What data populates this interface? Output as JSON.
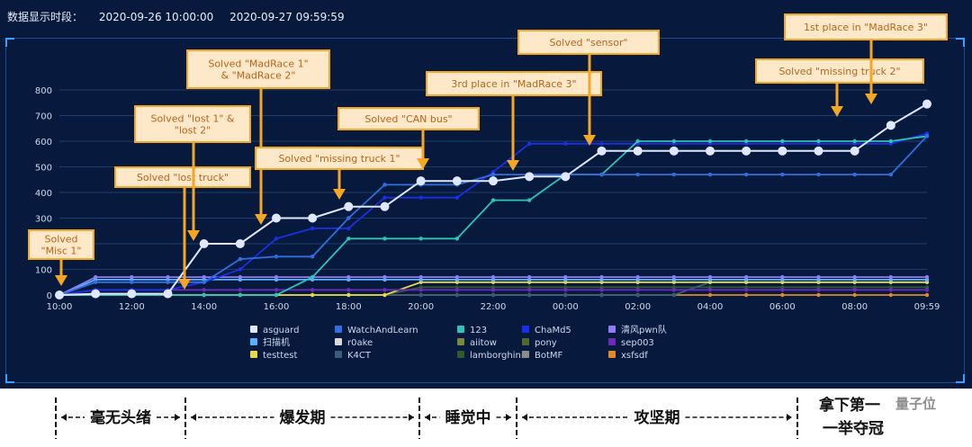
{
  "header": {
    "label": "数据显示时段：",
    "start": "2020-09-26 10:00:00",
    "end": "2020-09-27 09:59:59"
  },
  "colors": {
    "background": "#071a3d",
    "callout_fill": "#fde9c9",
    "callout_border": "#f5a623",
    "arrow": "#f5a623"
  },
  "chart_data": {
    "type": "line",
    "x_ticks": [
      "10:00",
      "12:00",
      "14:00",
      "16:00",
      "18:00",
      "20:00",
      "22:00",
      "00:00",
      "02:00",
      "04:00",
      "06:00",
      "08:00",
      "09:59"
    ],
    "ylim": [
      0,
      800
    ],
    "y_ticks": [
      0,
      100,
      200,
      300,
      400,
      500,
      600,
      700,
      800
    ],
    "grid": true,
    "legend_position": "bottom",
    "series": [
      {
        "name": "asguard",
        "color": "#dfe8ff",
        "marker": "large",
        "points": [
          [
            0,
            0
          ],
          [
            1,
            5
          ],
          [
            2,
            5
          ],
          [
            3,
            5
          ],
          [
            4,
            200
          ],
          [
            5,
            200
          ],
          [
            6,
            300
          ],
          [
            7,
            300
          ],
          [
            8,
            345
          ],
          [
            9,
            345
          ],
          [
            10,
            445
          ],
          [
            11,
            445
          ],
          [
            12,
            445
          ],
          [
            13,
            462
          ],
          [
            14,
            462
          ],
          [
            15,
            562
          ],
          [
            16,
            562
          ],
          [
            17,
            562
          ],
          [
            18,
            562
          ],
          [
            19,
            562
          ],
          [
            20,
            562
          ],
          [
            21,
            562
          ],
          [
            22,
            562
          ],
          [
            23,
            662
          ],
          [
            24,
            745
          ]
        ]
      },
      {
        "name": "WatchAndLearn",
        "color": "#2f6fe0",
        "marker": "small",
        "points": [
          [
            0,
            0
          ],
          [
            1,
            50
          ],
          [
            2,
            50
          ],
          [
            3,
            50
          ],
          [
            4,
            50
          ],
          [
            5,
            140
          ],
          [
            6,
            150
          ],
          [
            7,
            150
          ],
          [
            8,
            300
          ],
          [
            9,
            430
          ],
          [
            10,
            430
          ],
          [
            11,
            430
          ],
          [
            12,
            470
          ],
          [
            13,
            470
          ],
          [
            14,
            470
          ],
          [
            15,
            470
          ],
          [
            16,
            470
          ],
          [
            17,
            470
          ],
          [
            18,
            470
          ],
          [
            19,
            470
          ],
          [
            20,
            470
          ],
          [
            21,
            470
          ],
          [
            22,
            470
          ],
          [
            23,
            470
          ],
          [
            24,
            620
          ]
        ]
      },
      {
        "name": "123",
        "color": "#2ec4b6",
        "marker": "small",
        "points": [
          [
            0,
            0
          ],
          [
            1,
            0
          ],
          [
            2,
            0
          ],
          [
            3,
            0
          ],
          [
            4,
            0
          ],
          [
            5,
            0
          ],
          [
            6,
            0
          ],
          [
            7,
            70
          ],
          [
            8,
            220
          ],
          [
            9,
            220
          ],
          [
            10,
            220
          ],
          [
            11,
            220
          ],
          [
            12,
            370
          ],
          [
            13,
            370
          ],
          [
            14,
            470
          ],
          [
            15,
            470
          ],
          [
            16,
            600
          ],
          [
            17,
            600
          ],
          [
            18,
            600
          ],
          [
            19,
            600
          ],
          [
            20,
            600
          ],
          [
            21,
            600
          ],
          [
            22,
            600
          ],
          [
            23,
            600
          ],
          [
            24,
            620
          ]
        ]
      },
      {
        "name": "ChaMd5",
        "color": "#1a2fe8",
        "marker": "small",
        "points": [
          [
            0,
            0
          ],
          [
            1,
            20
          ],
          [
            2,
            20
          ],
          [
            3,
            20
          ],
          [
            4,
            50
          ],
          [
            5,
            100
          ],
          [
            6,
            220
          ],
          [
            7,
            260
          ],
          [
            8,
            260
          ],
          [
            9,
            380
          ],
          [
            10,
            380
          ],
          [
            11,
            380
          ],
          [
            12,
            480
          ],
          [
            13,
            590
          ],
          [
            14,
            590
          ],
          [
            15,
            590
          ],
          [
            16,
            590
          ],
          [
            17,
            590
          ],
          [
            18,
            590
          ],
          [
            19,
            590
          ],
          [
            20,
            590
          ],
          [
            21,
            590
          ],
          [
            22,
            590
          ],
          [
            23,
            590
          ],
          [
            24,
            630
          ]
        ]
      },
      {
        "name": "清风pwn队",
        "color": "#8f7cf2",
        "marker": "small",
        "points": [
          [
            0,
            0
          ],
          [
            1,
            70
          ],
          [
            2,
            70
          ],
          [
            3,
            70
          ],
          [
            4,
            70
          ],
          [
            5,
            70
          ],
          [
            6,
            70
          ],
          [
            7,
            70
          ],
          [
            8,
            70
          ],
          [
            9,
            70
          ],
          [
            10,
            70
          ],
          [
            11,
            70
          ],
          [
            12,
            70
          ],
          [
            13,
            70
          ],
          [
            14,
            70
          ],
          [
            15,
            70
          ],
          [
            16,
            70
          ],
          [
            17,
            70
          ],
          [
            18,
            70
          ],
          [
            19,
            70
          ],
          [
            20,
            70
          ],
          [
            21,
            70
          ],
          [
            22,
            70
          ],
          [
            23,
            70
          ],
          [
            24,
            70
          ]
        ]
      },
      {
        "name": "扫描机",
        "color": "#5ab0ff",
        "marker": "small",
        "points": [
          [
            0,
            0
          ],
          [
            1,
            60
          ],
          [
            2,
            60
          ],
          [
            3,
            60
          ],
          [
            4,
            60
          ],
          [
            5,
            60
          ],
          [
            6,
            60
          ],
          [
            7,
            60
          ],
          [
            8,
            60
          ],
          [
            9,
            60
          ],
          [
            10,
            60
          ],
          [
            11,
            60
          ],
          [
            12,
            60
          ],
          [
            13,
            60
          ],
          [
            14,
            60
          ],
          [
            15,
            60
          ],
          [
            16,
            60
          ],
          [
            17,
            60
          ],
          [
            18,
            60
          ],
          [
            19,
            60
          ],
          [
            20,
            60
          ],
          [
            21,
            60
          ],
          [
            22,
            60
          ],
          [
            23,
            60
          ],
          [
            24,
            60
          ]
        ]
      },
      {
        "name": "r0ake",
        "color": "#d9d9d9",
        "marker": "none",
        "points": []
      },
      {
        "name": "aiitow",
        "color": "#7a8a3a",
        "marker": "none",
        "points": []
      },
      {
        "name": "pony",
        "color": "#4e6a2e",
        "marker": "none",
        "points": []
      },
      {
        "name": "sep003",
        "color": "#6a2bb8",
        "marker": "small",
        "points": [
          [
            0,
            0
          ],
          [
            1,
            20
          ],
          [
            2,
            20
          ],
          [
            3,
            20
          ],
          [
            4,
            20
          ],
          [
            5,
            20
          ],
          [
            6,
            20
          ],
          [
            7,
            20
          ],
          [
            8,
            20
          ],
          [
            9,
            20
          ],
          [
            10,
            20
          ],
          [
            11,
            20
          ],
          [
            12,
            20
          ],
          [
            13,
            20
          ],
          [
            14,
            20
          ],
          [
            15,
            20
          ],
          [
            16,
            20
          ],
          [
            17,
            20
          ],
          [
            18,
            20
          ],
          [
            19,
            20
          ],
          [
            20,
            20
          ],
          [
            21,
            20
          ],
          [
            22,
            20
          ],
          [
            23,
            20
          ],
          [
            24,
            20
          ]
        ]
      },
      {
        "name": "testtest",
        "color": "#e6d84a",
        "marker": "small",
        "points": [
          [
            0,
            0
          ],
          [
            1,
            0
          ],
          [
            2,
            0
          ],
          [
            3,
            0
          ],
          [
            4,
            0
          ],
          [
            5,
            0
          ],
          [
            6,
            0
          ],
          [
            7,
            0
          ],
          [
            8,
            0
          ],
          [
            9,
            0
          ],
          [
            10,
            50
          ],
          [
            11,
            50
          ],
          [
            12,
            50
          ],
          [
            13,
            50
          ],
          [
            14,
            50
          ],
          [
            15,
            50
          ],
          [
            16,
            50
          ],
          [
            17,
            50
          ],
          [
            18,
            50
          ],
          [
            19,
            50
          ],
          [
            20,
            50
          ],
          [
            21,
            50
          ],
          [
            22,
            50
          ],
          [
            23,
            50
          ],
          [
            24,
            50
          ]
        ]
      },
      {
        "name": "K4CT",
        "color": "#3a5a7a",
        "marker": "small",
        "points": [
          [
            0,
            0
          ],
          [
            1,
            0
          ],
          [
            2,
            0
          ],
          [
            3,
            0
          ],
          [
            4,
            0
          ],
          [
            5,
            0
          ],
          [
            6,
            0
          ],
          [
            7,
            0
          ],
          [
            8,
            0
          ],
          [
            9,
            0
          ],
          [
            10,
            0
          ],
          [
            11,
            0
          ],
          [
            12,
            0
          ],
          [
            13,
            0
          ],
          [
            14,
            0
          ],
          [
            15,
            0
          ],
          [
            16,
            0
          ],
          [
            17,
            0
          ],
          [
            18,
            50
          ],
          [
            19,
            50
          ],
          [
            20,
            50
          ],
          [
            21,
            50
          ],
          [
            22,
            50
          ],
          [
            23,
            50
          ],
          [
            24,
            50
          ]
        ]
      },
      {
        "name": "lamborghini",
        "color": "#2e5a2e",
        "marker": "small",
        "points": [
          [
            0,
            0
          ],
          [
            1,
            0
          ],
          [
            2,
            0
          ],
          [
            3,
            0
          ],
          [
            4,
            0
          ],
          [
            5,
            0
          ],
          [
            6,
            0
          ],
          [
            7,
            0
          ],
          [
            8,
            0
          ],
          [
            9,
            0
          ],
          [
            10,
            30
          ],
          [
            11,
            30
          ],
          [
            12,
            30
          ],
          [
            13,
            30
          ],
          [
            14,
            30
          ],
          [
            15,
            30
          ],
          [
            16,
            30
          ],
          [
            17,
            30
          ],
          [
            18,
            30
          ],
          [
            19,
            30
          ],
          [
            20,
            30
          ],
          [
            21,
            30
          ],
          [
            22,
            30
          ],
          [
            23,
            30
          ],
          [
            24,
            30
          ]
        ]
      },
      {
        "name": "BotMF",
        "color": "#8c8c8c",
        "marker": "none",
        "points": []
      },
      {
        "name": "xsfsdf",
        "color": "#e08a2a",
        "marker": "small",
        "points": [
          [
            0,
            0
          ],
          [
            1,
            0
          ],
          [
            2,
            0
          ],
          [
            3,
            0
          ],
          [
            4,
            0
          ],
          [
            5,
            0
          ],
          [
            6,
            0
          ],
          [
            7,
            0
          ],
          [
            8,
            0
          ],
          [
            9,
            0
          ],
          [
            10,
            0
          ],
          [
            11,
            0
          ],
          [
            12,
            0
          ],
          [
            13,
            0
          ],
          [
            14,
            0
          ],
          [
            15,
            0
          ],
          [
            16,
            0
          ],
          [
            17,
            0
          ],
          [
            18,
            0
          ],
          [
            19,
            0
          ],
          [
            20,
            0
          ],
          [
            21,
            0
          ],
          [
            22,
            0
          ],
          [
            23,
            0
          ],
          [
            24,
            0
          ]
        ]
      }
    ],
    "annotations": [
      {
        "lines": [
          "Solved",
          "\"Misc 1\""
        ]
      },
      {
        "lines": [
          "Solved \"lost truck\""
        ]
      },
      {
        "lines": [
          "Solved \"lost 1\" &",
          "\"lost 2\""
        ]
      },
      {
        "lines": [
          "Solved \"MadRace 1\"",
          "& \"MadRace 2\""
        ]
      },
      {
        "lines": [
          "Solved \"missing truck 1\""
        ]
      },
      {
        "lines": [
          "Solved \"CAN bus\""
        ]
      },
      {
        "lines": [
          "3rd place in \"MadRace 3\""
        ]
      },
      {
        "lines": [
          "Solved \"sensor\""
        ]
      },
      {
        "lines": [
          "Solved \"missing truck 2\""
        ]
      },
      {
        "lines": [
          "1st place in \"MadRace 3\""
        ]
      }
    ]
  },
  "phases": [
    {
      "label": "毫无头绪"
    },
    {
      "label": "爆发期"
    },
    {
      "label": "睡觉中"
    },
    {
      "label": "攻坚期"
    },
    {
      "label": "一举夺冠",
      "top": "拿下第一"
    }
  ],
  "watermark": "量子位"
}
